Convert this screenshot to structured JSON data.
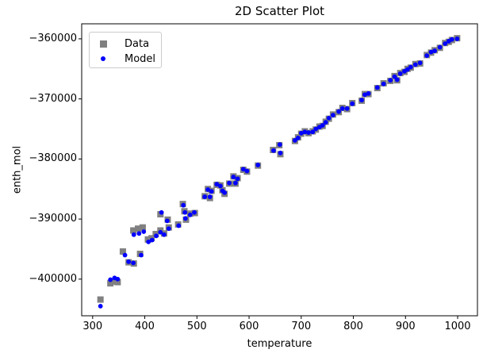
{
  "chart_data": {
    "type": "scatter",
    "title": "2D Scatter Plot",
    "xlabel": "temperature",
    "ylabel": "enth_mol",
    "grid": false,
    "legend_position": "upper left",
    "xlim": [
      279,
      1038
    ],
    "ylim": [
      -406100,
      -357500
    ],
    "xticks": [
      300,
      400,
      500,
      600,
      700,
      800,
      900,
      1000
    ],
    "xtick_labels": [
      "300",
      "400",
      "500",
      "600",
      "700",
      "800",
      "900",
      "1000"
    ],
    "yticks": [
      -360000,
      -370000,
      -380000,
      -390000,
      -400000
    ],
    "ytick_labels": [
      "−360000",
      "−370000",
      "−380000",
      "−390000",
      "−400000"
    ],
    "series": [
      {
        "name": "Data",
        "marker": "square",
        "color": "#808080",
        "points": [
          [
            315,
            -403400
          ],
          [
            334,
            -400700
          ],
          [
            342,
            -400400
          ],
          [
            348,
            -400500
          ],
          [
            358,
            -395400
          ],
          [
            369,
            -397200
          ],
          [
            379,
            -397400
          ],
          [
            391,
            -395800
          ],
          [
            378,
            -391900
          ],
          [
            387,
            -391600
          ],
          [
            396,
            -391400
          ],
          [
            406,
            -393400
          ],
          [
            413,
            -393200
          ],
          [
            421,
            -392500
          ],
          [
            430,
            -391900
          ],
          [
            437,
            -392400
          ],
          [
            446,
            -391400
          ],
          [
            430,
            -389200
          ],
          [
            444,
            -390100
          ],
          [
            464,
            -390900
          ],
          [
            473,
            -387500
          ],
          [
            476,
            -388700
          ],
          [
            479,
            -390100
          ],
          [
            487,
            -389100
          ],
          [
            496,
            -389000
          ],
          [
            515,
            -386200
          ],
          [
            521,
            -385000
          ],
          [
            525,
            -386500
          ],
          [
            528,
            -385300
          ],
          [
            538,
            -384300
          ],
          [
            545,
            -384400
          ],
          [
            549,
            -385200
          ],
          [
            553,
            -385800
          ],
          [
            562,
            -384100
          ],
          [
            570,
            -382900
          ],
          [
            574,
            -384100
          ],
          [
            578,
            -383200
          ],
          [
            589,
            -381800
          ],
          [
            596,
            -382100
          ],
          [
            617,
            -381100
          ],
          [
            646,
            -378500
          ],
          [
            658,
            -377700
          ],
          [
            660,
            -379200
          ],
          [
            688,
            -377000
          ],
          [
            694,
            -376400
          ],
          [
            700,
            -375800
          ],
          [
            707,
            -375400
          ],
          [
            714,
            -375700
          ],
          [
            722,
            -375400
          ],
          [
            728,
            -375100
          ],
          [
            735,
            -374600
          ],
          [
            741,
            -374500
          ],
          [
            747,
            -373800
          ],
          [
            753,
            -373300
          ],
          [
            761,
            -372600
          ],
          [
            772,
            -372200
          ],
          [
            779,
            -371500
          ],
          [
            788,
            -371700
          ],
          [
            798,
            -370700
          ],
          [
            816,
            -370300
          ],
          [
            822,
            -369200
          ],
          [
            829,
            -369200
          ],
          [
            846,
            -368200
          ],
          [
            858,
            -367400
          ],
          [
            871,
            -367000
          ],
          [
            879,
            -366200
          ],
          [
            884,
            -366900
          ],
          [
            890,
            -365700
          ],
          [
            898,
            -365500
          ],
          [
            904,
            -365000
          ],
          [
            910,
            -364800
          ],
          [
            919,
            -364200
          ],
          [
            928,
            -364100
          ],
          [
            941,
            -362700
          ],
          [
            949,
            -362300
          ],
          [
            956,
            -361900
          ],
          [
            966,
            -361500
          ],
          [
            976,
            -360700
          ],
          [
            983,
            -360500
          ],
          [
            989,
            -360200
          ],
          [
            999,
            -359900
          ]
        ]
      },
      {
        "name": "Model",
        "marker": "circle",
        "color": "#0000ff",
        "points": [
          [
            315,
            -404500
          ],
          [
            334,
            -400100
          ],
          [
            342,
            -399800
          ],
          [
            348,
            -400000
          ],
          [
            362,
            -396000
          ],
          [
            369,
            -397100
          ],
          [
            378,
            -397300
          ],
          [
            393,
            -396000
          ],
          [
            379,
            -392600
          ],
          [
            389,
            -392400
          ],
          [
            398,
            -392100
          ],
          [
            407,
            -393800
          ],
          [
            414,
            -393500
          ],
          [
            422,
            -392800
          ],
          [
            430,
            -392200
          ],
          [
            437,
            -392600
          ],
          [
            446,
            -391600
          ],
          [
            432,
            -388900
          ],
          [
            443,
            -390300
          ],
          [
            465,
            -391100
          ],
          [
            474,
            -387700
          ],
          [
            477,
            -388900
          ],
          [
            478,
            -389900
          ],
          [
            487,
            -389300
          ],
          [
            495,
            -388900
          ],
          [
            515,
            -386300
          ],
          [
            521,
            -385100
          ],
          [
            525,
            -386300
          ],
          [
            528,
            -385400
          ],
          [
            538,
            -384200
          ],
          [
            545,
            -384500
          ],
          [
            549,
            -385300
          ],
          [
            553,
            -385600
          ],
          [
            562,
            -384000
          ],
          [
            570,
            -383000
          ],
          [
            574,
            -384000
          ],
          [
            578,
            -383300
          ],
          [
            589,
            -381700
          ],
          [
            596,
            -382000
          ],
          [
            617,
            -381000
          ],
          [
            647,
            -378600
          ],
          [
            659,
            -377600
          ],
          [
            660,
            -379000
          ],
          [
            688,
            -376900
          ],
          [
            694,
            -376500
          ],
          [
            700,
            -375700
          ],
          [
            707,
            -375500
          ],
          [
            714,
            -375600
          ],
          [
            722,
            -375500
          ],
          [
            728,
            -375000
          ],
          [
            735,
            -374700
          ],
          [
            741,
            -374400
          ],
          [
            747,
            -373900
          ],
          [
            753,
            -373200
          ],
          [
            761,
            -372700
          ],
          [
            772,
            -372100
          ],
          [
            779,
            -371600
          ],
          [
            788,
            -371600
          ],
          [
            798,
            -370800
          ],
          [
            816,
            -370200
          ],
          [
            822,
            -369300
          ],
          [
            829,
            -369100
          ],
          [
            846,
            -368100
          ],
          [
            858,
            -367500
          ],
          [
            871,
            -366900
          ],
          [
            879,
            -366300
          ],
          [
            884,
            -366800
          ],
          [
            890,
            -365800
          ],
          [
            898,
            -365400
          ],
          [
            904,
            -365100
          ],
          [
            910,
            -364700
          ],
          [
            919,
            -364300
          ],
          [
            928,
            -364000
          ],
          [
            941,
            -362800
          ],
          [
            949,
            -362200
          ],
          [
            956,
            -362000
          ],
          [
            966,
            -361400
          ],
          [
            976,
            -360800
          ],
          [
            983,
            -360400
          ],
          [
            989,
            -360100
          ],
          [
            999,
            -360000
          ]
        ]
      }
    ]
  }
}
